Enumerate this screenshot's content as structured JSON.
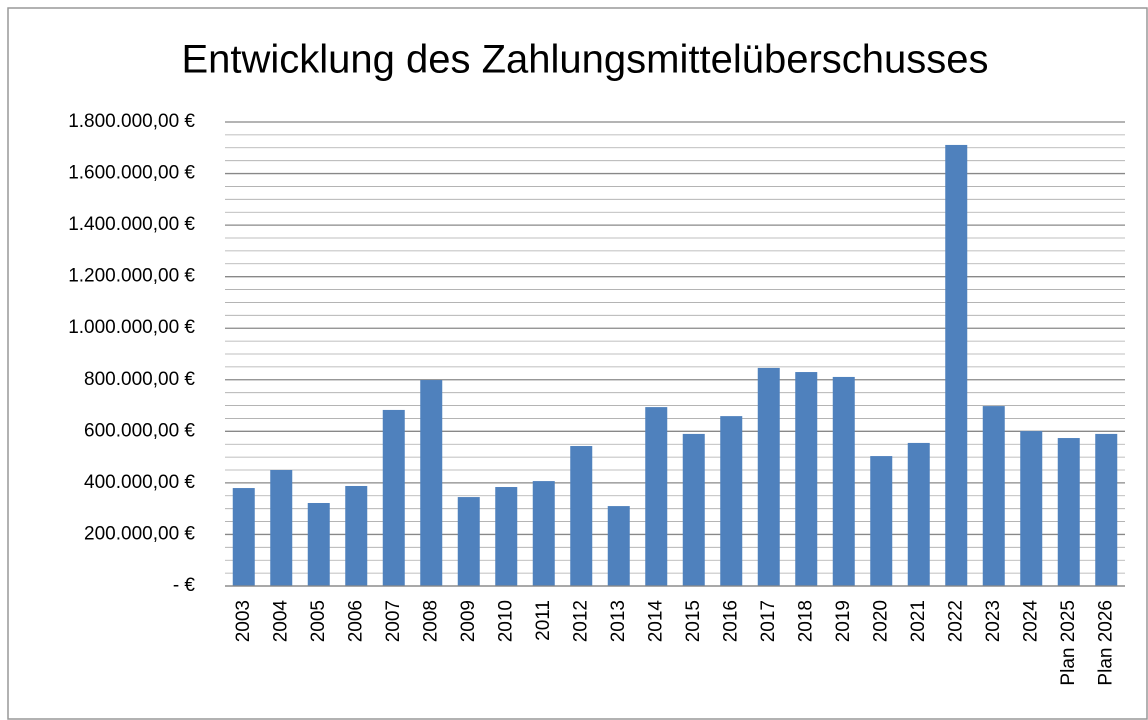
{
  "chart_data": {
    "type": "bar",
    "title": "Entwicklung des Zahlungsmittelüberschusses",
    "categories": [
      "2003",
      "2004",
      "2005",
      "2006",
      "2007",
      "2008",
      "2009",
      "2010",
      "2011",
      "2012",
      "2013",
      "2014",
      "2015",
      "2016",
      "2017",
      "2018",
      "2019",
      "2020",
      "2021",
      "2022",
      "2023",
      "2024",
      "Plan 2025",
      "Plan 2026"
    ],
    "values": [
      380000,
      450000,
      322000,
      388000,
      683000,
      799000,
      345000,
      384000,
      407000,
      543000,
      310000,
      694000,
      590000,
      659000,
      846000,
      830000,
      811000,
      504000,
      555000,
      1711000,
      698000,
      601000,
      574000,
      590000
    ],
    "color": "#4f81bd",
    "ylim": [
      0,
      1800000
    ],
    "yticks": [
      {
        "value": 0,
        "label": "-  €"
      },
      {
        "value": 200000,
        "label": "200.000,00 €"
      },
      {
        "value": 400000,
        "label": "400.000,00 €"
      },
      {
        "value": 600000,
        "label": "600.000,00 €"
      },
      {
        "value": 800000,
        "label": "800.000,00 €"
      },
      {
        "value": 1000000,
        "label": "1.000.000,00 €"
      },
      {
        "value": 1200000,
        "label": "1.200.000,00 €"
      },
      {
        "value": 1400000,
        "label": "1.400.000,00 €"
      },
      {
        "value": 1600000,
        "label": "1.600.000,00 €"
      },
      {
        "value": 1800000,
        "label": "1.800.000,00 €"
      }
    ],
    "grid": true
  }
}
